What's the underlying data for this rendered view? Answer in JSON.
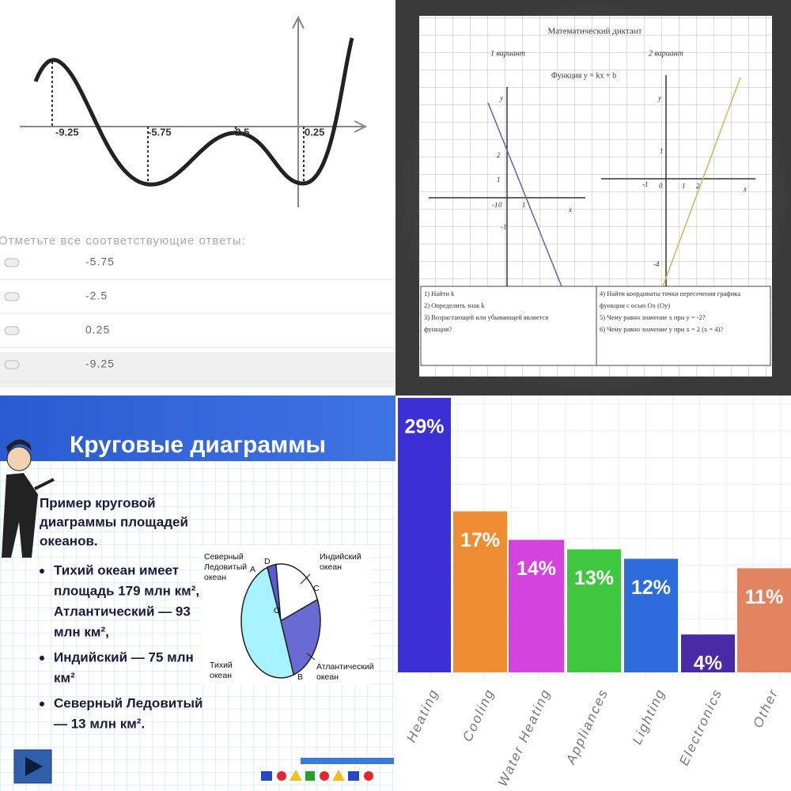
{
  "graph_quiz": {
    "axis_labels": [
      "-9.25",
      "-5.75",
      "-2.5",
      "0.25"
    ],
    "prompt": "Отметьте все соответствующие ответы:",
    "options": [
      "-5.75",
      "-2.5",
      "0.25",
      "-9.25"
    ]
  },
  "dictation": {
    "title": "Математический диктант",
    "variant_1": "1 вариант",
    "variant_2": "2 вариант",
    "function": "Функция y = kx + b",
    "graph_1_labels": [
      "y",
      "2",
      "1",
      "0",
      "1",
      "x",
      "-1",
      "-1"
    ],
    "graph_2_labels": [
      "y",
      "1",
      "-1",
      "0",
      "1",
      "2",
      "x",
      "-4"
    ],
    "tasks_1": [
      "1) Найти k",
      "2) Определить знак k",
      "3) Возрастающей или убывающей является",
      "функция?"
    ],
    "tasks_2": [
      "4) Найти координаты точки пересечения графика",
      "функции с осью Ox (Oy)",
      "5) Чему равно значение x при y = -2?",
      "6) Чему равно значение y при x = 2 (x = 4)?"
    ]
  },
  "slide": {
    "title": "Круговые диаграммы",
    "intro": [
      "Пример   круговой",
      "диаграммы площадей",
      "океанов."
    ],
    "bullets": [
      [
        "Тихий океан имеет",
        "площадь 179 млн км²,",
        "Атлантический — 93",
        "млн км²,"
      ],
      [
        "Индийский — 75 млн",
        "км²"
      ],
      [
        " Северный Ледовитый",
        "— 13 млн км²."
      ]
    ],
    "pie_labels": {
      "arctic": [
        "Северный",
        "Ледовитый",
        "океан"
      ],
      "a": "A",
      "d": "D",
      "indian": [
        "Индийский",
        "океан"
      ],
      "c": "C",
      "o": "O",
      "pacific": [
        "Тихий",
        "океан"
      ],
      "b": "B",
      "atlantic": [
        "Атлантический",
        "океан"
      ]
    }
  },
  "chart_data": {
    "type": "bar",
    "categories": [
      "Heating",
      "Cooling",
      "Water Heating",
      "Appliances",
      "Lighting",
      "Electronics",
      "Other"
    ],
    "values": [
      29,
      17,
      14,
      13,
      12,
      4,
      11
    ],
    "value_labels": [
      "29%",
      "17%",
      "14%",
      "13%",
      "12%",
      "4%",
      "11%"
    ],
    "colors": [
      "#3b2fd6",
      "#f08c32",
      "#d444dc",
      "#3fc83f",
      "#2c6cdc",
      "#4a2aa6",
      "#e08462"
    ]
  }
}
